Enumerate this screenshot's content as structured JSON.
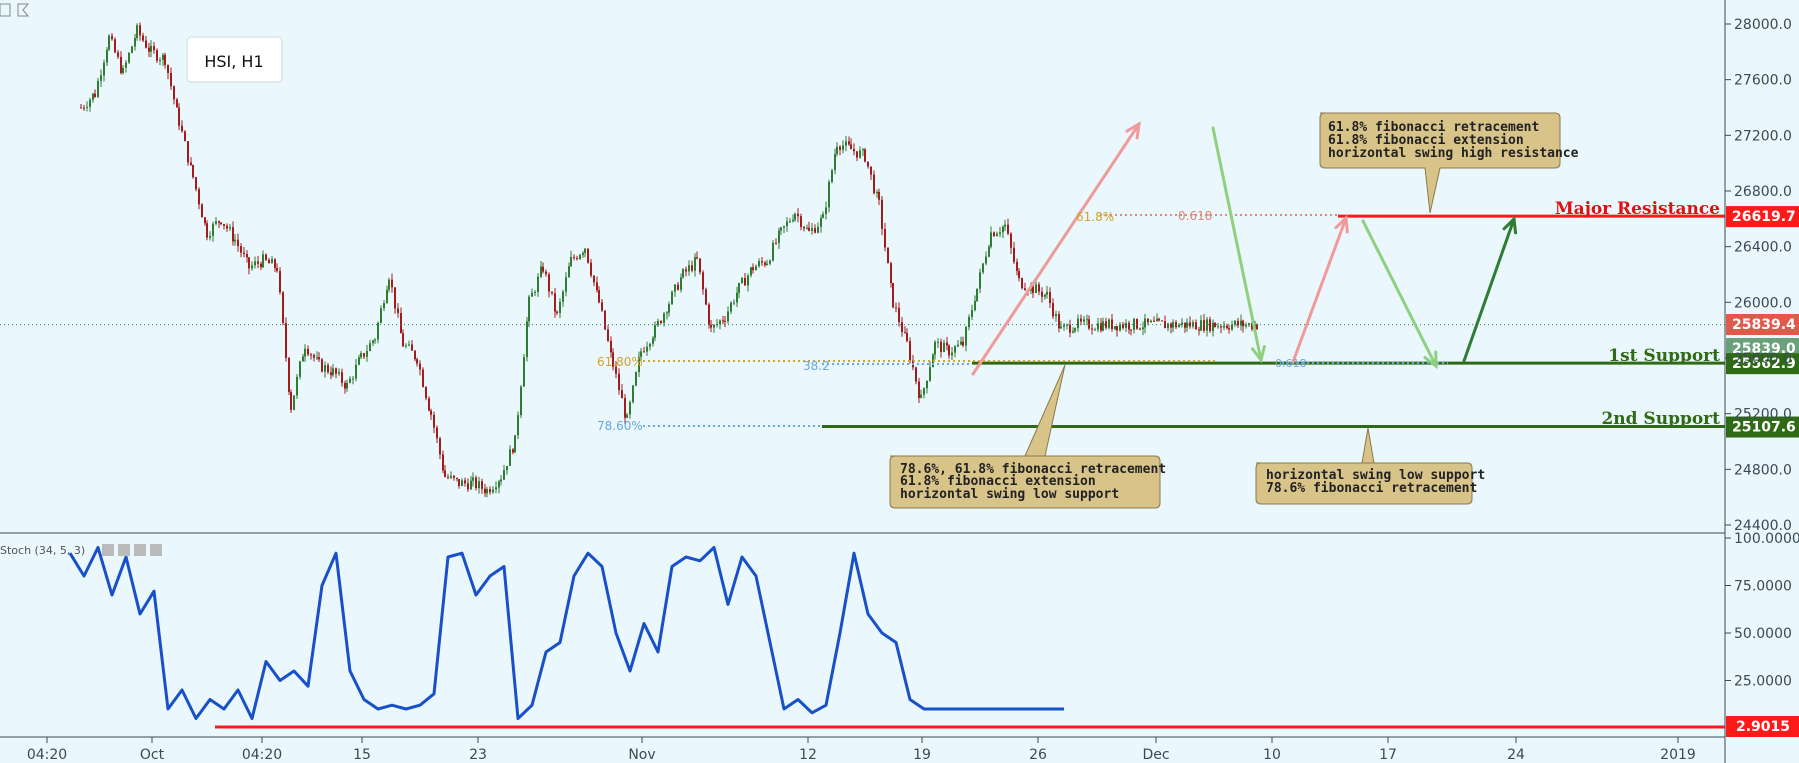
{
  "symbol_label": "HSI, H1",
  "colors": {
    "background": "#eaf7fc",
    "bull_candle": "#2e7d32",
    "bear_candle": "#a51b1b",
    "resistance": "#ff1a1a",
    "support": "#2f6b14",
    "stoch_line": "#1750c8",
    "fib_gold": "#d4a22a",
    "fib_blue": "#6aa6e0",
    "note_fill": "#d8c389",
    "arrow_pink": "#f09a9a",
    "arrow_green": "#8fd07f"
  },
  "x_axis": {
    "labels": [
      "04:20",
      "Oct",
      "04:20",
      "15",
      "23",
      "Nov",
      "12",
      "19",
      "26",
      "Dec",
      "10",
      "17",
      "24",
      "2019"
    ]
  },
  "price_axis": {
    "ticks": [
      "28000.0",
      "27600.0",
      "27200.0",
      "26800.0",
      "26400.0",
      "26000.0",
      "25600.0",
      "25200.0",
      "24800.0",
      "24400.0"
    ],
    "tags": [
      {
        "id": "resistance",
        "value": "26619.7"
      },
      {
        "id": "last-red",
        "value": "25839.4"
      },
      {
        "id": "last-green",
        "value": "25839.0"
      },
      {
        "id": "support-1",
        "value": "25562.9"
      },
      {
        "id": "support-2",
        "value": "25107.6"
      }
    ]
  },
  "levels": {
    "major_resistance": "Major Resistance",
    "first_support": "1st Support",
    "second_support": "2nd Support"
  },
  "fib_labels": {
    "left_618": "61.80%",
    "left_786": "78.60%",
    "left_blue_small": "38.2",
    "top_618a": "61.8%",
    "top_618b": "0.618",
    "bottom_blue": "0.618"
  },
  "notes": {
    "resistance": [
      "61.8% fibonacci retracement",
      "61.8% fibonacci extension",
      "horizontal swing high resistance"
    ],
    "support1": [
      "78.6%, 61.8% fibonacci retracement",
      "61.8% fibonacci extension",
      "horizontal swing low support"
    ],
    "support2": [
      "horizontal swing low support",
      "78.6% fibonacci retracement"
    ]
  },
  "stoch": {
    "label": "Stoch (34, 5, 3)",
    "ticks": [
      "100.0000",
      "75.0000",
      "50.0000",
      "25.0000"
    ],
    "tag": "2.9015"
  },
  "chart_data": {
    "type": "line",
    "title": "HSI, H1",
    "price_axis_range": [
      24400,
      28000
    ],
    "price_series": {
      "name": "HSI",
      "x_day": [
        -5,
        -4,
        -3,
        -2,
        -1,
        0,
        1,
        2,
        3,
        4,
        5,
        6,
        7,
        8,
        9,
        10,
        11,
        12,
        13,
        14,
        15,
        16,
        17,
        18,
        19,
        20,
        21,
        22,
        23,
        24,
        25,
        26,
        27,
        28,
        29,
        30,
        31,
        32,
        33,
        34,
        35,
        36,
        37,
        38,
        39,
        40,
        41,
        42,
        43,
        44,
        45,
        46,
        47,
        48,
        49,
        50,
        51,
        52,
        53,
        54,
        55,
        56,
        57,
        58,
        59,
        60,
        61,
        62,
        63,
        64,
        65,
        66,
        67,
        68,
        69,
        70,
        71,
        72,
        73,
        74,
        75,
        76,
        77,
        78,
        79,
        80
      ],
      "values": [
        27400,
        27500,
        27900,
        27650,
        27950,
        27800,
        27750,
        27300,
        26900,
        26500,
        26600,
        26450,
        26250,
        26300,
        26250,
        25250,
        25700,
        25550,
        25500,
        25400,
        25600,
        25750,
        26200,
        25700,
        25600,
        25200,
        24750,
        24700,
        24700,
        24650,
        24750,
        25000,
        26000,
        26250,
        25900,
        26300,
        26400,
        26000,
        25550,
        25150,
        25650,
        25800,
        26000,
        26200,
        26300,
        25800,
        25900,
        26100,
        26250,
        26300,
        26500,
        26650,
        26500,
        26600,
        27150,
        27100,
        27050,
        26700,
        26000,
        25700,
        25300,
        25700,
        25650,
        25700,
        26100,
        26500,
        26550,
        26150,
        26100,
        26050,
        25800,
        25839.4,
        25839.4,
        25839.4,
        25839.4,
        25839.4,
        25839.4,
        25839.4,
        25839.4,
        25839.4,
        25839.4,
        25839.4,
        25839.4,
        25839.4,
        25839.4,
        25839.4
      ]
    },
    "horizontal_levels": [
      {
        "name": "Major Resistance",
        "value": 26619.7
      },
      {
        "name": "1st Support",
        "value": 25562.9
      },
      {
        "name": "2nd Support",
        "value": 25107.6
      }
    ],
    "last_price": 25839.4,
    "stochastic": {
      "name": "Stoch (34, 5, 3)",
      "range": [
        0,
        100
      ],
      "x_day": [
        -5,
        -4,
        -3,
        -2,
        -1,
        0,
        1,
        2,
        3,
        4,
        5,
        6,
        7,
        8,
        9,
        10,
        11,
        12,
        13,
        14,
        15,
        16,
        17,
        18,
        19,
        20,
        21,
        22,
        23,
        24,
        25,
        26,
        27,
        28,
        29,
        30,
        31,
        32,
        33,
        34,
        35,
        36,
        37,
        38,
        39,
        40,
        41,
        42,
        43,
        44,
        45,
        46,
        47,
        48,
        49,
        50,
        51,
        52,
        53,
        54,
        55,
        56,
        57,
        58,
        59,
        60,
        61,
        62,
        63,
        64,
        65,
        66
      ],
      "values": [
        92,
        80,
        95,
        70,
        90,
        60,
        72,
        10,
        20,
        5,
        15,
        10,
        20,
        5,
        35,
        25,
        30,
        22,
        75,
        92,
        30,
        15,
        10,
        12,
        10,
        12,
        18,
        90,
        92,
        70,
        80,
        85,
        5,
        12,
        40,
        45,
        80,
        92,
        85,
        50,
        30,
        55,
        40,
        85,
        90,
        88,
        95,
        65,
        90,
        80,
        45,
        10,
        15,
        8,
        12,
        50,
        92,
        60,
        50,
        45,
        15,
        10,
        10,
        10,
        10,
        10,
        10,
        10,
        10,
        10,
        10,
        10
      ],
      "level": 2.9015
    }
  }
}
